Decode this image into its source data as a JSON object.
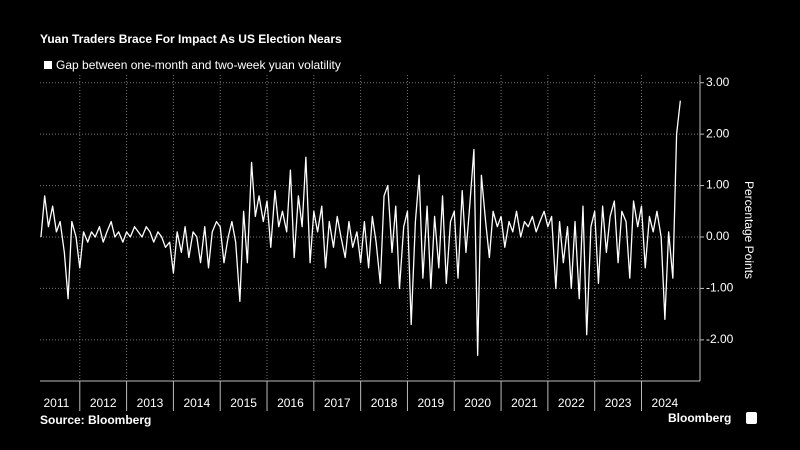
{
  "chart_data": {
    "type": "line",
    "title": "Yuan Traders Brace For Impact As US Election Nears",
    "y_label": "Percentage Points",
    "source": "Source: Bloomberg",
    "brand": "Bloomberg",
    "x": [
      2011.17,
      2011.25,
      2011.33,
      2011.42,
      2011.5,
      2011.58,
      2011.67,
      2011.75,
      2011.83,
      2011.92,
      2012.0,
      2012.08,
      2012.17,
      2012.25,
      2012.33,
      2012.42,
      2012.5,
      2012.58,
      2012.67,
      2012.75,
      2012.83,
      2012.92,
      2013.0,
      2013.08,
      2013.17,
      2013.25,
      2013.33,
      2013.42,
      2013.5,
      2013.58,
      2013.67,
      2013.75,
      2013.83,
      2013.92,
      2014.0,
      2014.08,
      2014.17,
      2014.25,
      2014.33,
      2014.42,
      2014.5,
      2014.58,
      2014.67,
      2014.75,
      2014.83,
      2014.92,
      2015.0,
      2015.08,
      2015.17,
      2015.25,
      2015.33,
      2015.42,
      2015.5,
      2015.58,
      2015.67,
      2015.75,
      2015.83,
      2015.92,
      2016.0,
      2016.08,
      2016.17,
      2016.25,
      2016.33,
      2016.42,
      2016.5,
      2016.58,
      2016.67,
      2016.75,
      2016.83,
      2016.92,
      2017.0,
      2017.08,
      2017.17,
      2017.25,
      2017.33,
      2017.42,
      2017.5,
      2017.58,
      2017.67,
      2017.75,
      2017.83,
      2017.92,
      2018.0,
      2018.08,
      2018.17,
      2018.25,
      2018.33,
      2018.42,
      2018.5,
      2018.58,
      2018.67,
      2018.75,
      2018.83,
      2018.92,
      2019.0,
      2019.08,
      2019.17,
      2019.25,
      2019.33,
      2019.42,
      2019.5,
      2019.58,
      2019.67,
      2019.75,
      2019.83,
      2019.92,
      2020.0,
      2020.08,
      2020.17,
      2020.25,
      2020.33,
      2020.42,
      2020.5,
      2020.58,
      2020.67,
      2020.75,
      2020.83,
      2020.92,
      2021.0,
      2021.08,
      2021.17,
      2021.25,
      2021.33,
      2021.42,
      2021.5,
      2021.58,
      2021.67,
      2021.75,
      2021.83,
      2021.92,
      2022.0,
      2022.08,
      2022.17,
      2022.25,
      2022.33,
      2022.42,
      2022.5,
      2022.58,
      2022.67,
      2022.75,
      2022.83,
      2022.92,
      2023.0,
      2023.08,
      2023.17,
      2023.25,
      2023.33,
      2023.42,
      2023.5,
      2023.58,
      2023.67,
      2023.75,
      2023.83,
      2023.92,
      2024.0,
      2024.08,
      2024.17,
      2024.25,
      2024.33,
      2024.42,
      2024.5,
      2024.58,
      2024.67,
      2024.75,
      2024.83
    ],
    "series": [
      {
        "name": "Gap between one-month and two-week yuan volatility",
        "color": "#ffffff",
        "values": [
          0.0,
          0.8,
          0.2,
          0.6,
          0.1,
          0.3,
          -0.3,
          -1.2,
          0.3,
          0.0,
          -0.6,
          0.1,
          -0.1,
          0.1,
          0.0,
          0.2,
          -0.1,
          0.1,
          0.3,
          0.0,
          0.1,
          -0.1,
          0.1,
          0.0,
          0.2,
          0.1,
          0.0,
          0.2,
          0.1,
          -0.1,
          0.1,
          0.0,
          -0.2,
          -0.1,
          -0.7,
          0.1,
          -0.3,
          0.2,
          -0.4,
          0.1,
          0.0,
          -0.5,
          0.2,
          -0.6,
          0.1,
          0.3,
          0.2,
          -0.5,
          0.0,
          0.3,
          -0.1,
          -1.25,
          0.5,
          -0.5,
          1.45,
          0.4,
          0.8,
          0.3,
          0.7,
          -0.2,
          0.9,
          0.2,
          0.5,
          0.1,
          1.3,
          -0.4,
          0.8,
          0.2,
          1.55,
          -0.5,
          0.5,
          0.1,
          0.6,
          -0.6,
          0.3,
          -0.2,
          0.4,
          0.0,
          -0.4,
          0.3,
          -0.2,
          0.1,
          -0.5,
          0.3,
          -0.6,
          0.4,
          -0.1,
          -0.9,
          0.8,
          1.0,
          -0.3,
          0.6,
          -1.0,
          0.2,
          0.5,
          -1.7,
          0.3,
          1.2,
          -0.8,
          0.6,
          -1.0,
          0.4,
          -0.6,
          0.8,
          -0.9,
          0.3,
          0.5,
          -0.8,
          0.9,
          -0.3,
          0.6,
          1.7,
          -2.3,
          1.2,
          0.3,
          -0.4,
          0.5,
          0.2,
          0.4,
          -0.2,
          0.3,
          0.1,
          0.5,
          0.0,
          0.3,
          0.2,
          0.4,
          0.1,
          0.3,
          0.5,
          0.2,
          0.4,
          -1.0,
          0.3,
          -0.5,
          0.2,
          -1.0,
          0.3,
          -1.2,
          0.6,
          -1.9,
          0.2,
          0.5,
          -0.9,
          0.6,
          -0.3,
          0.4,
          0.7,
          -0.5,
          0.5,
          0.3,
          -0.8,
          0.7,
          0.2,
          0.6,
          -0.6,
          0.4,
          0.1,
          0.5,
          0.0,
          -1.6,
          0.1,
          -0.8,
          2.0,
          2.65
        ]
      }
    ],
    "xlim": [
      2011.15,
      2025.25
    ],
    "xticks": [
      {
        "value": 2011.5,
        "label": "2011"
      },
      {
        "value": 2012.5,
        "label": "2012"
      },
      {
        "value": 2013.5,
        "label": "2013"
      },
      {
        "value": 2014.5,
        "label": "2014"
      },
      {
        "value": 2015.5,
        "label": "2015"
      },
      {
        "value": 2016.5,
        "label": "2016"
      },
      {
        "value": 2017.5,
        "label": "2017"
      },
      {
        "value": 2018.5,
        "label": "2018"
      },
      {
        "value": 2019.5,
        "label": "2019"
      },
      {
        "value": 2020.5,
        "label": "2020"
      },
      {
        "value": 2021.5,
        "label": "2021"
      },
      {
        "value": 2022.5,
        "label": "2022"
      },
      {
        "value": 2023.5,
        "label": "2023"
      },
      {
        "value": 2024.5,
        "label": "2024"
      }
    ],
    "ylim": [
      -2.8,
      3.15
    ],
    "yticks": [
      {
        "value": -2,
        "label": "-2.00"
      },
      {
        "value": -1,
        "label": "-1.00"
      },
      {
        "value": 0,
        "label": "0.00"
      },
      {
        "value": 1,
        "label": "1.00"
      },
      {
        "value": 2,
        "label": "2.00"
      },
      {
        "value": 3,
        "label": "3.00"
      }
    ],
    "grid": true
  }
}
